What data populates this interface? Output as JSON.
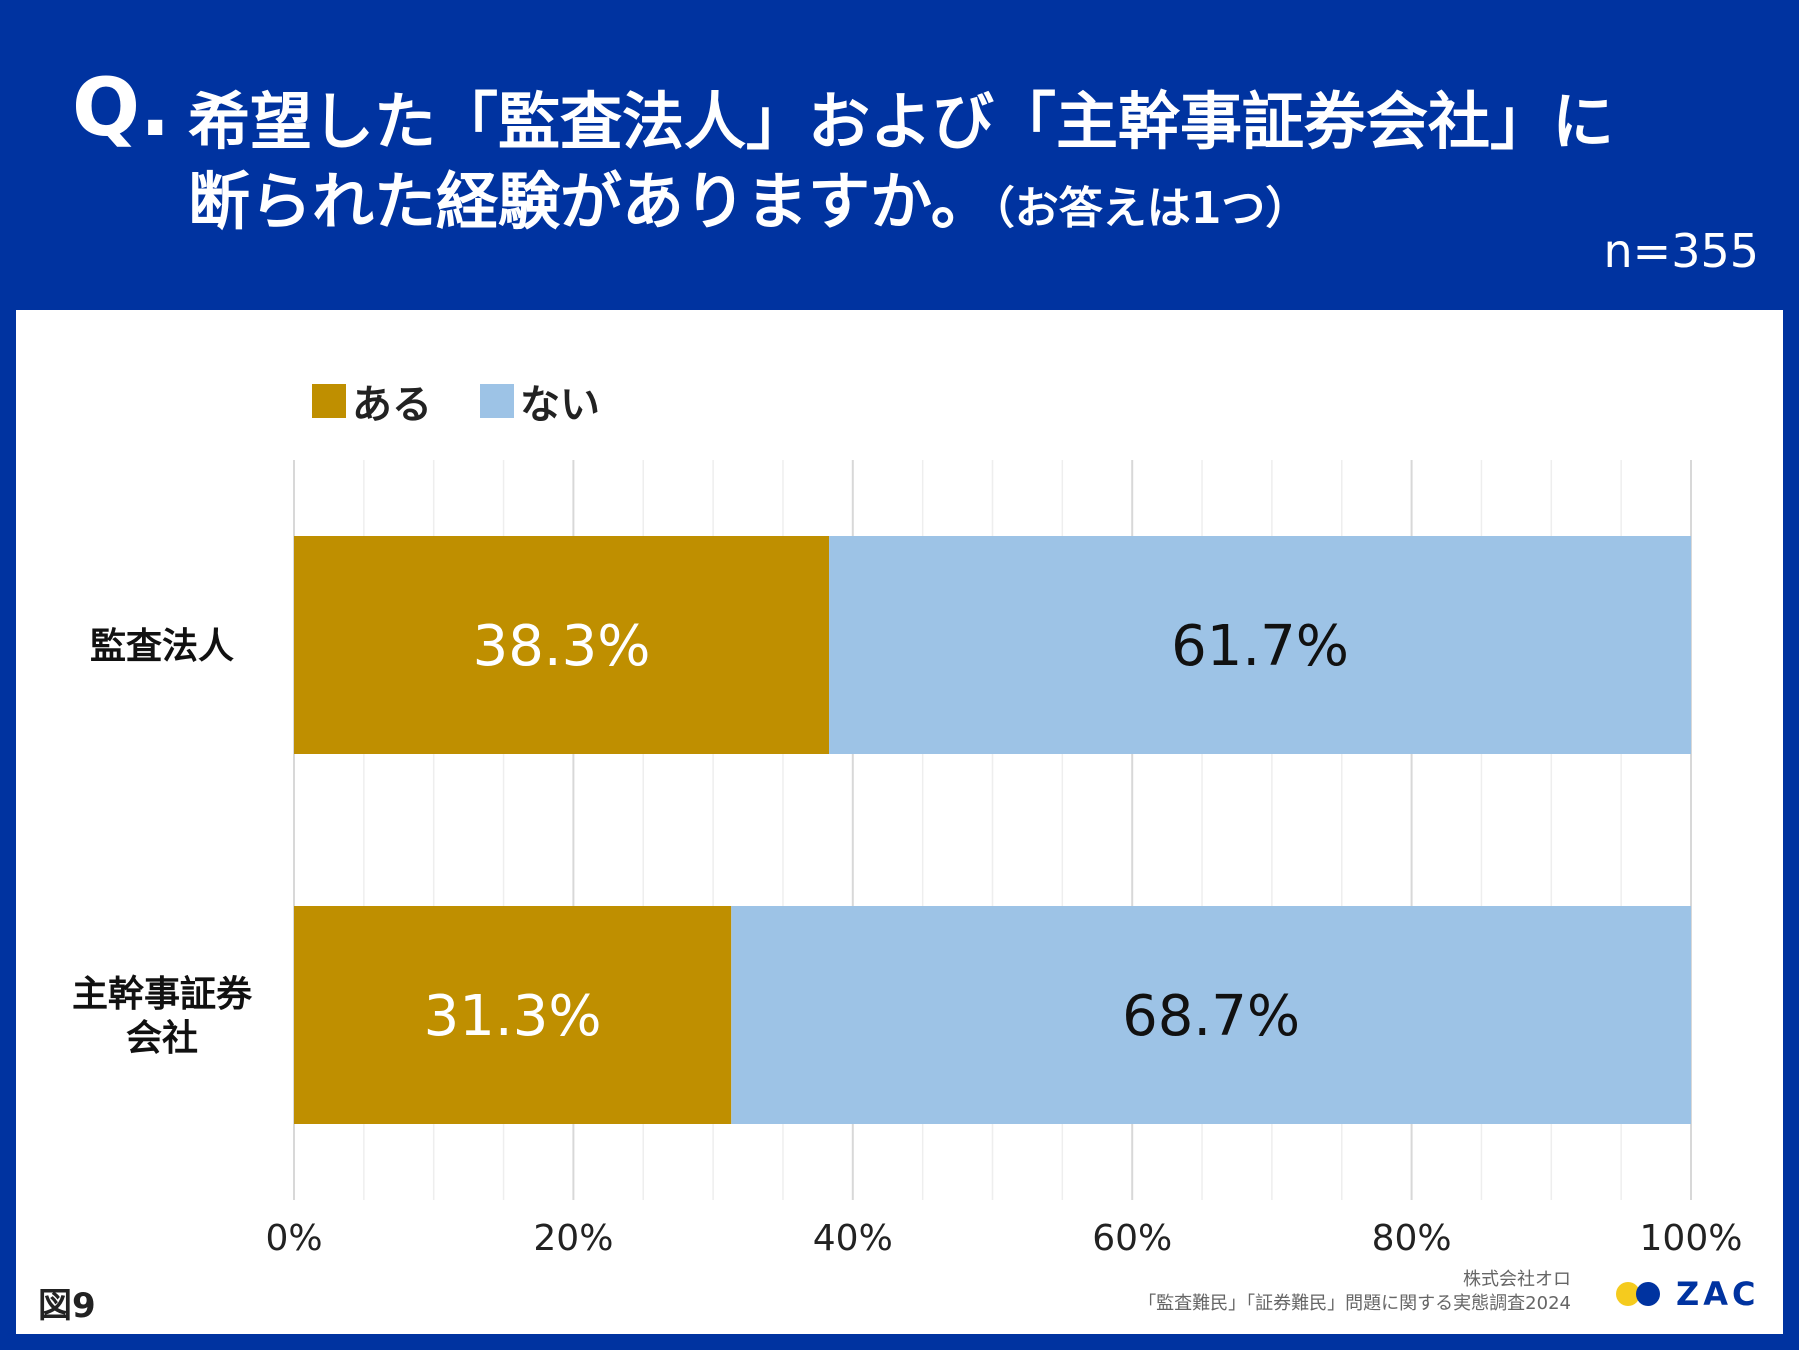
{
  "header": {
    "q_mark": "Q.",
    "question_line1": "希望した「監査法人」および「主幹事証券会社」に",
    "question_line2": "断られた経験がありますか。",
    "question_note": "（お答えは1つ）",
    "sample_size": "n=355"
  },
  "footer": {
    "figure_label": "図9",
    "company": "株式会社オロ",
    "survey_title": "「監査難民」「証券難民」問題に関する実態調査2024",
    "brand_name": "ZAC",
    "brand_colors": {
      "dot_left": "#f5cb1e",
      "dot_right": "#0033a0",
      "text": "#0033a0"
    }
  },
  "colors": {
    "background": "#0033a0",
    "bar_yes": "#bf8f00",
    "bar_no": "#9dc3e6",
    "grid": "#e2e2e2"
  },
  "chart_data": {
    "type": "bar",
    "orientation": "horizontal",
    "stacked": true,
    "categories": [
      "監査法人",
      "主幹事証券\n会社"
    ],
    "series": [
      {
        "name": "ある",
        "values": [
          38.3,
          31.3
        ],
        "labels": [
          "38.3%",
          "31.3%"
        ]
      },
      {
        "name": "ない",
        "values": [
          61.7,
          68.7
        ],
        "labels": [
          "61.7%",
          "68.7%"
        ]
      }
    ],
    "xlim": [
      0,
      100
    ],
    "x_ticks": [
      "0%",
      "20%",
      "40%",
      "60%",
      "80%",
      "100%"
    ],
    "grid": true,
    "legend": "top-left"
  }
}
